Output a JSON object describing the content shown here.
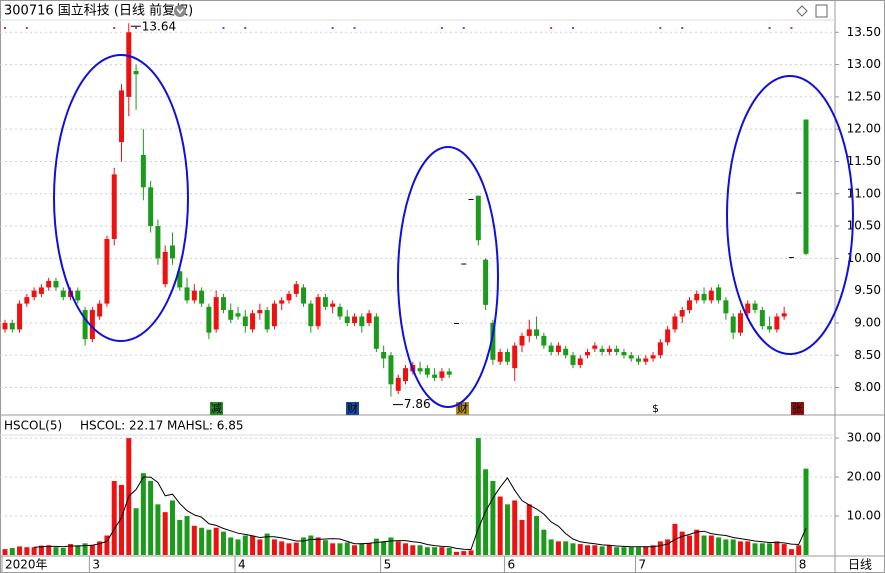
{
  "chart_data": [
    {
      "type": "candlestick",
      "title": "300716 国立科技 (日线 前复权)",
      "categories": [
        "2020年",
        null,
        null,
        null,
        null,
        null,
        null,
        null,
        null,
        null,
        null,
        null,
        "3",
        null,
        null,
        null,
        null,
        null,
        null,
        null,
        null,
        null,
        null,
        null,
        null,
        null,
        null,
        null,
        null,
        null,
        null,
        null,
        "4",
        null,
        null,
        null,
        null,
        null,
        null,
        null,
        null,
        null,
        null,
        null,
        null,
        null,
        null,
        null,
        null,
        null,
        null,
        null,
        "5",
        null,
        null,
        null,
        null,
        null,
        null,
        null,
        null,
        null,
        null,
        null,
        null,
        null,
        null,
        null,
        null,
        "6",
        null,
        null,
        null,
        null,
        null,
        null,
        null,
        null,
        null,
        null,
        null,
        null,
        null,
        null,
        null,
        null,
        null,
        "7",
        null,
        null,
        null,
        null,
        null,
        null,
        null,
        null,
        null,
        null,
        null,
        null,
        null,
        null,
        null,
        null,
        null,
        null,
        null,
        null,
        null,
        "8",
        null
      ],
      "open": [
        8.9,
        9.0,
        8.9,
        9.3,
        9.4,
        9.45,
        9.55,
        9.65,
        9.5,
        9.4,
        9.5,
        9.2,
        8.75,
        9.1,
        9.3,
        10.3,
        11.8,
        12.5,
        12.9,
        11.6,
        11.1,
        10.5,
        9.6,
        10.2,
        9.8,
        9.55,
        9.35,
        9.5,
        9.25,
        8.9,
        9.4,
        9.2,
        9.15,
        9.1,
        8.9,
        9.15,
        9.2,
        8.95,
        9.3,
        9.35,
        9.45,
        9.55,
        9.3,
        8.95,
        9.4,
        9.25,
        9.25,
        9.1,
        9.0,
        9.1,
        9.0,
        9.1,
        8.55,
        8.5,
        7.95,
        8.1,
        8.25,
        8.3,
        8.3,
        8.2,
        8.15,
        8.25,
        9.0,
        9.92,
        10.92,
        10.97,
        9.98,
        9.0,
        8.4,
        8.55,
        8.3,
        8.65,
        8.8,
        8.9,
        8.8,
        8.65,
        8.55,
        8.6,
        8.5,
        8.35,
        8.5,
        8.6,
        8.6,
        8.55,
        8.6,
        8.55,
        8.5,
        8.45,
        8.4,
        8.45,
        8.5,
        8.7,
        8.9,
        9.1,
        9.2,
        9.35,
        9.45,
        9.35,
        9.55,
        9.35,
        9.1,
        8.85,
        9.15,
        9.3,
        9.2,
        8.95,
        8.9,
        9.1,
        10.02,
        11.02,
        12.15
      ],
      "high": [
        9.05,
        9.05,
        9.35,
        9.45,
        9.55,
        9.6,
        9.7,
        9.7,
        9.55,
        9.55,
        9.55,
        9.25,
        9.25,
        9.35,
        10.35,
        11.4,
        12.7,
        13.64,
        13.0,
        12.0,
        11.2,
        10.6,
        10.2,
        10.4,
        9.85,
        9.7,
        9.6,
        9.55,
        9.3,
        9.5,
        9.45,
        9.3,
        9.25,
        9.2,
        9.2,
        9.3,
        9.25,
        9.35,
        9.4,
        9.5,
        9.65,
        9.6,
        9.35,
        9.45,
        9.45,
        9.35,
        9.3,
        9.2,
        9.15,
        9.15,
        9.2,
        9.15,
        8.65,
        8.55,
        8.2,
        8.35,
        8.4,
        8.4,
        8.35,
        8.3,
        8.3,
        8.3,
        9.0,
        9.92,
        10.92,
        10.97,
        10.0,
        9.05,
        8.6,
        8.6,
        8.7,
        8.85,
        9.05,
        9.1,
        8.85,
        8.7,
        8.7,
        8.65,
        8.55,
        8.5,
        8.6,
        8.7,
        8.65,
        8.65,
        8.65,
        8.6,
        8.55,
        8.5,
        8.5,
        8.55,
        8.75,
        8.95,
        9.15,
        9.25,
        9.4,
        9.5,
        9.55,
        9.55,
        9.6,
        9.4,
        9.15,
        9.2,
        9.35,
        9.35,
        9.25,
        9.1,
        9.15,
        9.25,
        10.02,
        11.02,
        12.15
      ],
      "low": [
        8.85,
        8.85,
        8.85,
        9.25,
        9.35,
        9.4,
        9.5,
        9.5,
        9.35,
        9.35,
        9.3,
        8.65,
        8.7,
        9.05,
        9.25,
        10.2,
        11.5,
        12.2,
        12.3,
        10.9,
        10.4,
        9.9,
        9.55,
        9.9,
        9.5,
        9.3,
        9.3,
        9.25,
        8.75,
        8.85,
        9.15,
        9.0,
        9.05,
        8.85,
        8.85,
        9.05,
        8.85,
        8.9,
        9.2,
        9.3,
        9.4,
        9.25,
        8.85,
        8.9,
        9.2,
        9.15,
        9.05,
        8.95,
        8.95,
        8.85,
        8.95,
        8.55,
        8.3,
        7.86,
        7.9,
        8.05,
        8.2,
        8.2,
        8.15,
        8.1,
        8.1,
        8.15,
        9.0,
        9.92,
        10.92,
        10.2,
        9.2,
        8.35,
        8.35,
        8.35,
        8.1,
        8.55,
        8.7,
        8.75,
        8.6,
        8.5,
        8.5,
        8.45,
        8.3,
        8.3,
        8.45,
        8.55,
        8.5,
        8.5,
        8.5,
        8.45,
        8.4,
        8.35,
        8.35,
        8.4,
        8.45,
        8.65,
        8.85,
        9.0,
        9.15,
        9.3,
        9.3,
        9.3,
        9.3,
        9.05,
        8.75,
        8.8,
        9.1,
        9.15,
        8.9,
        8.85,
        8.85,
        9.05,
        10.02,
        11.02,
        10.05
      ],
      "close": [
        9.0,
        8.9,
        9.3,
        9.4,
        9.5,
        9.55,
        9.65,
        9.55,
        9.4,
        9.5,
        9.35,
        8.75,
        9.2,
        9.3,
        10.3,
        11.3,
        12.6,
        13.5,
        12.85,
        11.1,
        10.5,
        10.0,
        10.1,
        10.0,
        9.55,
        9.35,
        9.5,
        9.3,
        8.85,
        9.4,
        9.2,
        9.05,
        9.1,
        8.95,
        9.15,
        9.2,
        8.9,
        9.3,
        9.35,
        9.45,
        9.6,
        9.3,
        8.95,
        9.4,
        9.25,
        9.3,
        9.1,
        9.0,
        9.1,
        8.95,
        9.15,
        8.6,
        8.45,
        8.05,
        8.15,
        8.3,
        8.35,
        8.25,
        8.2,
        8.15,
        8.25,
        8.2,
        9.0,
        9.92,
        10.92,
        10.28,
        9.28,
        8.43,
        8.55,
        8.4,
        8.65,
        8.8,
        8.9,
        8.8,
        8.65,
        8.55,
        8.65,
        8.5,
        8.35,
        8.45,
        8.55,
        8.65,
        8.55,
        8.6,
        8.55,
        8.5,
        8.45,
        8.4,
        8.45,
        8.5,
        8.7,
        8.9,
        9.1,
        9.2,
        9.35,
        9.45,
        9.35,
        9.5,
        9.35,
        9.15,
        8.85,
        9.15,
        9.3,
        9.2,
        8.95,
        8.9,
        9.1,
        9.15,
        10.02,
        11.02,
        10.07
      ],
      "up_color": "#ee1111",
      "down_color": "#1b9a1b",
      "ylim": [
        7.73,
        13.69
      ],
      "yticks": [
        {
          "value": 8,
          "label": "8.00"
        },
        {
          "value": 8.5,
          "label": "8.50"
        },
        {
          "value": 9,
          "label": "9.00"
        },
        {
          "value": 9.5,
          "label": "9.50"
        },
        {
          "value": 10,
          "label": "10.00"
        },
        {
          "value": 10.5,
          "label": "10.50"
        },
        {
          "value": 11,
          "label": "11.00"
        },
        {
          "value": 11.5,
          "label": "11.50"
        },
        {
          "value": 12,
          "label": "12.00"
        },
        {
          "value": 12.5,
          "label": "12.50"
        },
        {
          "value": 13,
          "label": "13.00"
        },
        {
          "value": 13.5,
          "label": "13.50"
        }
      ],
      "grid": true,
      "max_label": 13.64,
      "min_label": 7.86,
      "events": [
        "减",
        "财",
        "财",
        "$",
        "张"
      ]
    },
    {
      "type": "bar",
      "title": "HSCOL(5)",
      "period": "日线",
      "series": [
        {
          "name": "HSCOL: 22.17",
          "values": [
            1.5,
            1.8,
            2.2,
            2.0,
            2.0,
            2.4,
            2.5,
            2.0,
            1.8,
            2.8,
            2.5,
            3.0,
            2.6,
            3.5,
            5.0,
            19.0,
            18.0,
            30.0,
            12.0,
            21.0,
            19.0,
            13.0,
            11.0,
            14.0,
            9.0,
            10.0,
            7.5,
            7.0,
            6.5,
            7.0,
            6.0,
            4.5,
            4.0,
            5.0,
            5.0,
            4.0,
            5.5,
            4.0,
            3.5,
            3.0,
            3.2,
            4.5,
            5.0,
            4.5,
            3.8,
            3.0,
            3.0,
            3.2,
            2.5,
            3.0,
            3.0,
            4.2,
            3.5,
            4.5,
            3.5,
            3.0,
            2.5,
            2.5,
            2.0,
            2.0,
            2.0,
            1.8,
            0.8,
            1.0,
            1.2,
            30.0,
            22.0,
            19.0,
            15.0,
            13.0,
            14.0,
            9.0,
            13.0,
            10.0,
            6.5,
            4.0,
            3.5,
            3.5,
            3.0,
            2.8,
            2.5,
            2.5,
            2.2,
            2.5,
            2.0,
            2.0,
            2.0,
            2.0,
            2.2,
            2.5,
            3.5,
            4.0,
            8.0,
            6.0,
            5.0,
            6.5,
            5.0,
            5.0,
            4.5,
            4.0,
            4.0,
            3.5,
            3.5,
            3.0,
            3.0,
            3.0,
            3.5,
            2.8,
            1.5,
            2.5,
            22.17
          ]
        },
        {
          "name": "MAHSL: 6.85",
          "type": "line",
          "color": "#000000",
          "values": [
            null,
            null,
            null,
            null,
            2.0,
            2.1,
            2.2,
            2.2,
            2.1,
            2.3,
            2.3,
            2.4,
            2.5,
            2.9,
            3.5,
            6.6,
            9.6,
            15.1,
            16.8,
            20.0,
            20.0,
            18.6,
            15.2,
            15.6,
            13.2,
            11.4,
            10.3,
            9.7,
            8.0,
            7.6,
            6.8,
            6.2,
            5.6,
            5.3,
            4.9,
            4.5,
            4.7,
            4.7,
            4.4,
            4.0,
            3.6,
            3.6,
            4.0,
            4.0,
            4.1,
            4.2,
            4.1,
            3.5,
            2.9,
            2.9,
            3.0,
            3.2,
            3.4,
            3.6,
            3.7,
            3.7,
            3.4,
            3.2,
            2.7,
            2.4,
            2.2,
            2.1,
            1.7,
            1.5,
            1.4,
            6.8,
            11.2,
            14.6,
            17.4,
            19.8,
            16.6,
            14.0,
            12.8,
            11.8,
            10.5,
            8.5,
            7.4,
            5.5,
            4.1,
            3.4,
            3.1,
            2.9,
            2.6,
            2.5,
            2.3,
            2.2,
            2.1,
            2.1,
            2.1,
            2.1,
            2.4,
            2.8,
            4.0,
            4.8,
            5.3,
            5.9,
            6.1,
            5.5,
            5.2,
            5.0,
            4.5,
            4.2,
            3.9,
            3.6,
            3.4,
            3.2,
            3.2,
            3.1,
            2.8,
            2.7,
            6.85
          ]
        }
      ],
      "ylim": [
        0,
        30.8
      ],
      "yticks": [
        {
          "value": 10,
          "label": "10.00"
        },
        {
          "value": 20,
          "label": "20.00"
        },
        {
          "value": 30,
          "label": "30.00"
        }
      ],
      "grid": true
    }
  ]
}
